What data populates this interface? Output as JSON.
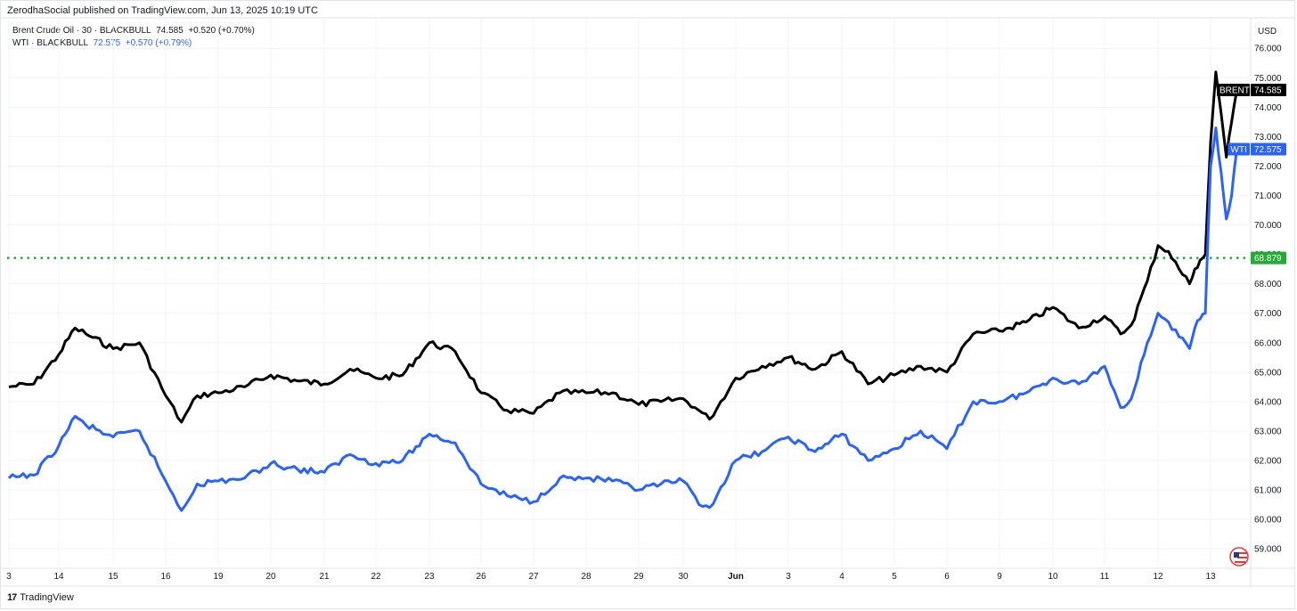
{
  "header": {
    "publisher": "ZerodhaSocial published on TradingView.com, Jun 13, 2025 10:19 UTC"
  },
  "legend": {
    "brent": {
      "name": "Brent Crude Oil · 30 · BLACKBULL",
      "last": "74.585",
      "change": "+0.520 (+0.70%)"
    },
    "wti": {
      "name": "WTI · BLACKBULL",
      "last": "72.575",
      "change": "+0.570 (+0.79%)"
    }
  },
  "footer": {
    "brand": "TradingView",
    "brand_mark": "17"
  },
  "colors": {
    "brent": "#000000",
    "wti": "#2962ff",
    "level": "#22ab36",
    "grid": "#f0f3fa"
  },
  "chart_data": {
    "type": "line",
    "currency": "USD",
    "ylim": [
      58.4,
      76.4
    ],
    "y_ticks": [
      "59.000",
      "60.000",
      "61.000",
      "62.000",
      "63.000",
      "64.000",
      "65.000",
      "66.000",
      "67.000",
      "68.000",
      "69.000",
      "70.000",
      "71.000",
      "72.000",
      "73.000",
      "74.000",
      "75.000",
      "76.000"
    ],
    "x_ticks": [
      "3",
      "14",
      "15",
      "16",
      "19",
      "20",
      "21",
      "22",
      "23",
      "26",
      "27",
      "28",
      "29",
      "30",
      "Jun",
      "3",
      "4",
      "5",
      "6",
      "9",
      "10",
      "11",
      "12",
      "13"
    ],
    "grid": true,
    "horizontal_line": {
      "value": 68.879,
      "label": "68.879",
      "style": "dotted"
    },
    "series": [
      {
        "name": "BRENT",
        "tag": "BRENT",
        "last_label": "74.585",
        "x": [
          0,
          0.5,
          1,
          1.3,
          1.5,
          2,
          2.5,
          3,
          3.3,
          3.6,
          4,
          4.5,
          5,
          5.5,
          6,
          6.5,
          7,
          7.5,
          8,
          8.5,
          9,
          9.5,
          10,
          10.5,
          11,
          11.5,
          12,
          12.5,
          13,
          13.3,
          13.5,
          14,
          14.5,
          15,
          15.5,
          16,
          16.5,
          17,
          17.5,
          18,
          18.5,
          19,
          19.5,
          20,
          20.5,
          21,
          21.3,
          21.5,
          21.8,
          22,
          22.2,
          22.4,
          22.6,
          22.7,
          22.8,
          22.9,
          23,
          23.1,
          23.2,
          23.3,
          23.4,
          23.5
        ],
        "values": [
          64.5,
          64.6,
          65.6,
          66.5,
          66.3,
          65.8,
          66.0,
          64.2,
          63.3,
          64.2,
          64.3,
          64.5,
          64.9,
          64.7,
          64.6,
          65.1,
          64.8,
          64.9,
          66.0,
          65.7,
          64.3,
          63.7,
          63.6,
          64.3,
          64.3,
          64.3,
          63.9,
          64.0,
          64.1,
          63.7,
          63.4,
          64.8,
          65.2,
          65.5,
          65.1,
          65.7,
          64.6,
          64.9,
          65.2,
          65.0,
          66.3,
          66.4,
          66.7,
          67.2,
          66.5,
          66.9,
          66.3,
          66.6,
          68.1,
          69.3,
          69.1,
          68.5,
          68.0,
          68.5,
          68.8,
          69.0,
          72.8,
          75.2,
          73.8,
          72.3,
          73.5,
          74.585
        ]
      },
      {
        "name": "WTI",
        "tag": "WTI",
        "last_label": "72.575",
        "x": [
          0,
          0.5,
          1,
          1.3,
          1.5,
          2,
          2.5,
          3,
          3.3,
          3.6,
          4,
          4.5,
          5,
          5.5,
          6,
          6.5,
          7,
          7.5,
          8,
          8.5,
          9,
          9.5,
          10,
          10.5,
          11,
          11.5,
          12,
          12.5,
          13,
          13.3,
          13.5,
          14,
          14.5,
          15,
          15.5,
          16,
          16.5,
          17,
          17.5,
          18,
          18.5,
          19,
          19.5,
          20,
          20.5,
          21,
          21.3,
          21.5,
          21.8,
          22,
          22.2,
          22.4,
          22.6,
          22.7,
          22.8,
          22.9,
          23,
          23.1,
          23.2,
          23.3,
          23.4,
          23.5
        ],
        "values": [
          61.4,
          61.5,
          62.5,
          63.5,
          63.2,
          62.8,
          63.0,
          61.3,
          60.3,
          61.2,
          61.3,
          61.4,
          61.9,
          61.7,
          61.6,
          62.2,
          61.9,
          62.0,
          62.9,
          62.6,
          61.2,
          60.8,
          60.6,
          61.4,
          61.4,
          61.3,
          61.0,
          61.2,
          61.3,
          60.5,
          60.4,
          62.0,
          62.3,
          62.8,
          62.3,
          62.9,
          62.0,
          62.4,
          63.0,
          62.4,
          64.0,
          64.0,
          64.3,
          64.8,
          64.6,
          65.2,
          63.8,
          64.1,
          66.0,
          67.0,
          66.7,
          66.2,
          65.8,
          66.5,
          66.8,
          67.0,
          72.0,
          73.3,
          71.8,
          70.2,
          71.0,
          72.575
        ]
      }
    ]
  }
}
